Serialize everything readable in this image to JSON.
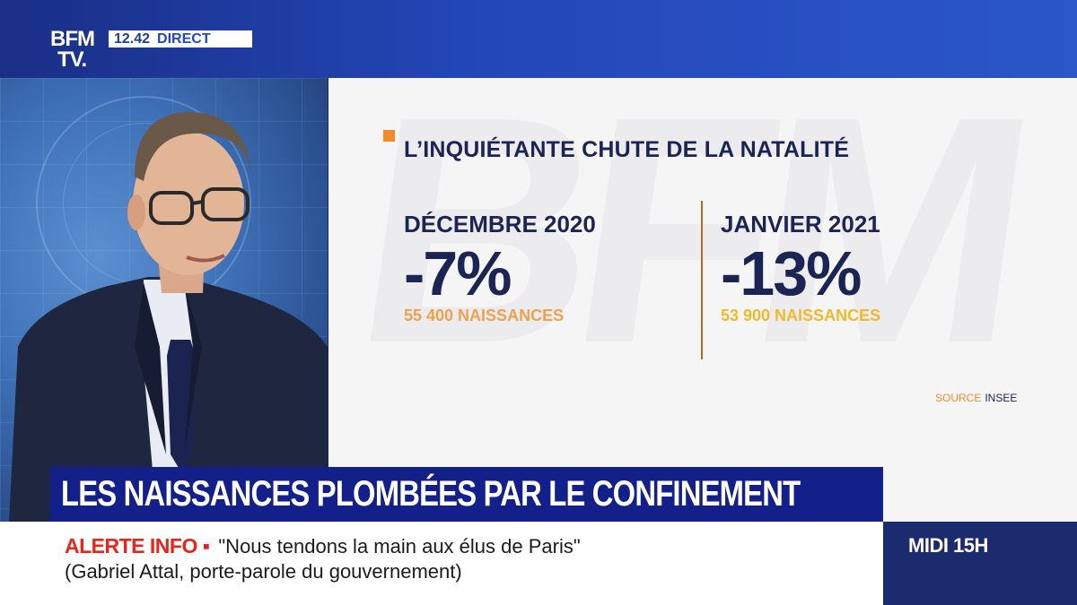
{
  "channel": {
    "logo_line1": "BFM",
    "logo_line2": "TV.",
    "time": "12.42",
    "live_label": "DIRECT"
  },
  "infographic": {
    "title": "L’INQUIÉTANTE CHUTE DE LA NATALITÉ",
    "watermark": "BFM",
    "columns": [
      {
        "period": "DÉCEMBRE 2020",
        "change": "-7%",
        "births": "55 400 NAISSANCES"
      },
      {
        "period": "JANVIER 2021",
        "change": "-13%",
        "births": "53 900 NAISSANCES"
      }
    ],
    "source_label": "SOURCE",
    "source_name": "INSEE",
    "accent_color": "#f08a2c"
  },
  "headline": "LES NAISSANCES PLOMBÉES PAR LE CONFINEMENT",
  "alert": {
    "tag": "ALERTE INFO ▪",
    "quote": "\"Nous tendons la main aux élus de Paris\"",
    "attribution": "(Gabriel Attal, porte-parole du gouvernement)"
  },
  "program": "MIDI 15H"
}
